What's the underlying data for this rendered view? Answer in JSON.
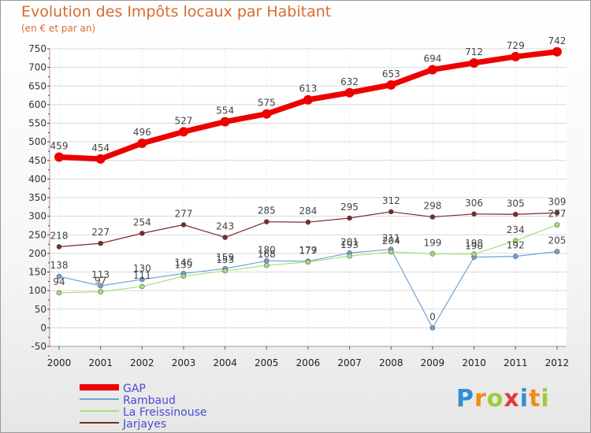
{
  "chart_data": {
    "type": "line",
    "title": "Evolution des Impôts locaux par Habitant",
    "subtitle": "(en € et par an)",
    "xlabel": "",
    "ylabel": "",
    "categories": [
      "2000",
      "2001",
      "2002",
      "2003",
      "2004",
      "2005",
      "2006",
      "2007",
      "2008",
      "2009",
      "2010",
      "2011",
      "2012"
    ],
    "ylim": [
      -50,
      750
    ],
    "yticks": [
      -50,
      0,
      50,
      100,
      150,
      200,
      250,
      300,
      350,
      400,
      450,
      500,
      550,
      600,
      650,
      700,
      750
    ],
    "grid": true,
    "legend_position": "bottom-left",
    "series": [
      {
        "name": "GAP",
        "color": "#ee0000",
        "values": [
          459,
          454,
          496,
          527,
          554,
          575,
          613,
          632,
          653,
          694,
          712,
          729,
          742
        ]
      },
      {
        "name": "Rambaud",
        "color": "#6fa3d4",
        "values": [
          138,
          113,
          130,
          146,
          159,
          180,
          179,
          201,
          211,
          0,
          190,
          192,
          205
        ]
      },
      {
        "name": "La Freissinouse",
        "color": "#a6e07a",
        "values": [
          94,
          97,
          111,
          139,
          153,
          168,
          177,
          193,
          204,
          199,
          198,
          234,
          277
        ]
      },
      {
        "name": "Jarjayes",
        "color": "#7a2a2a",
        "values": [
          218,
          227,
          254,
          277,
          243,
          285,
          284,
          295,
          312,
          298,
          306,
          305,
          309
        ]
      }
    ]
  },
  "brand": {
    "letters": [
      "P",
      "r",
      "o",
      "x",
      "i",
      "t",
      "i"
    ],
    "colors": [
      "#2f8fd6",
      "#f08c1c",
      "#9ccc3c",
      "#e23a3a",
      "#2f8fd6",
      "#f08c1c",
      "#9ccc3c"
    ]
  }
}
